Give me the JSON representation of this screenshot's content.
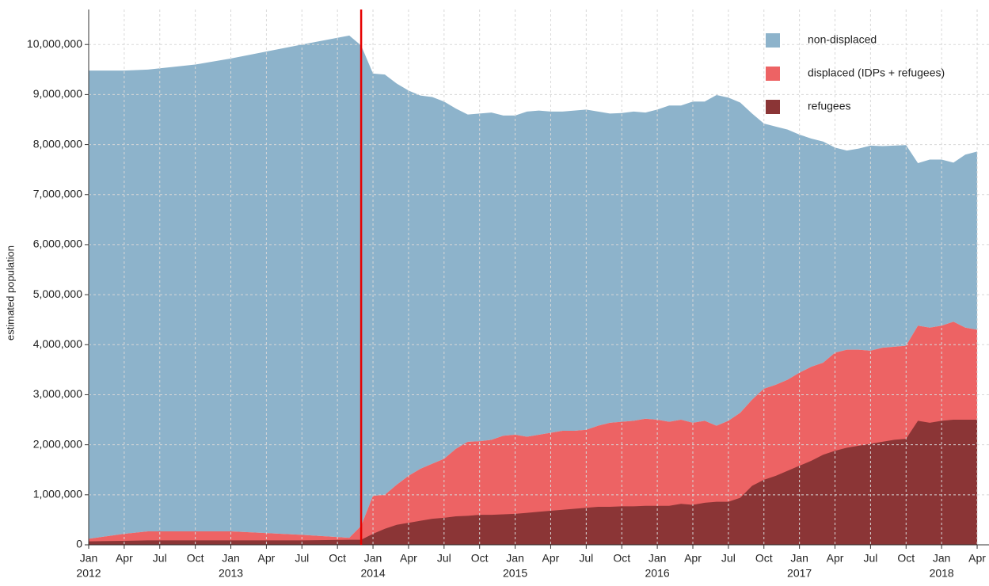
{
  "chart_data": {
    "type": "area",
    "y_label": "estimated population",
    "x": [
      "2012-01",
      "2012-04",
      "2012-06",
      "2012-10",
      "2013-01",
      "2013-07",
      "2013-11",
      "2013-12",
      "2014-01",
      "2014-02",
      "2014-03",
      "2014-04",
      "2014-05",
      "2014-06",
      "2014-07",
      "2014-08",
      "2014-09",
      "2014-10",
      "2014-11",
      "2014-12",
      "2015-01",
      "2015-02",
      "2015-03",
      "2015-04",
      "2015-05",
      "2015-06",
      "2015-07",
      "2015-08",
      "2015-09",
      "2015-10",
      "2015-11",
      "2015-12",
      "2016-01",
      "2016-02",
      "2016-03",
      "2016-04",
      "2016-05",
      "2016-06",
      "2016-07",
      "2016-08",
      "2016-09",
      "2016-10",
      "2016-11",
      "2016-12",
      "2017-01",
      "2017-02",
      "2017-03",
      "2017-04",
      "2017-05",
      "2017-06",
      "2017-07",
      "2017-08",
      "2017-09",
      "2017-10",
      "2017-11",
      "2017-12",
      "2018-01",
      "2018-02",
      "2018-03",
      "2018-04"
    ],
    "series": [
      {
        "name": "non-displaced",
        "color": "#8db3cb",
        "values": [
          9360000,
          9260000,
          9230000,
          9330000,
          9450000,
          9800000,
          10040000,
          9600000,
          8440000,
          8400000,
          8020000,
          7700000,
          7460000,
          7330000,
          7140000,
          6800000,
          6540000,
          6550000,
          6540000,
          6400000,
          6380000,
          6500000,
          6480000,
          6420000,
          6380000,
          6400000,
          6400000,
          6280000,
          6180000,
          6170000,
          6180000,
          6120000,
          6200000,
          6320000,
          6280000,
          6420000,
          6380000,
          6610000,
          6460000,
          6200000,
          5720000,
          5300000,
          5160000,
          5000000,
          4760000,
          4560000,
          4420000,
          4100000,
          3980000,
          4020000,
          4100000,
          4030000,
          4020000,
          4010000,
          3250000,
          3360000,
          3320000,
          3180000,
          3460000,
          3560000
        ]
      },
      {
        "name": "displaced (IDPs + refugees)",
        "color": "#ed6364",
        "values": [
          120000,
          220000,
          270000,
          270000,
          270000,
          200000,
          140000,
          380000,
          980000,
          1000000,
          1200000,
          1380000,
          1520000,
          1620000,
          1720000,
          1920000,
          2060000,
          2070000,
          2100000,
          2180000,
          2200000,
          2160000,
          2200000,
          2240000,
          2280000,
          2280000,
          2300000,
          2380000,
          2440000,
          2460000,
          2480000,
          2520000,
          2500000,
          2460000,
          2500000,
          2440000,
          2480000,
          2380000,
          2480000,
          2640000,
          2900000,
          3120000,
          3200000,
          3300000,
          3440000,
          3560000,
          3640000,
          3840000,
          3900000,
          3900000,
          3880000,
          3940000,
          3960000,
          3980000,
          4380000,
          4340000,
          4380000,
          4460000,
          4340000,
          4300000
        ]
      },
      {
        "name": "refugees",
        "color": "#8b3536",
        "values": [
          70000,
          80000,
          90000,
          90000,
          90000,
          90000,
          100000,
          100000,
          220000,
          320000,
          400000,
          440000,
          480000,
          520000,
          540000,
          570000,
          580000,
          600000,
          600000,
          610000,
          620000,
          640000,
          660000,
          680000,
          700000,
          720000,
          740000,
          760000,
          760000,
          770000,
          770000,
          780000,
          780000,
          780000,
          820000,
          800000,
          840000,
          860000,
          860000,
          940000,
          1180000,
          1300000,
          1380000,
          1480000,
          1580000,
          1680000,
          1800000,
          1880000,
          1940000,
          1980000,
          2020000,
          2060000,
          2100000,
          2120000,
          2480000,
          2440000,
          2480000,
          2500000,
          2500000,
          2500000
        ]
      }
    ],
    "xlim": [
      "2012-01",
      "2018-05"
    ],
    "xticks": [
      {
        "value": "2012-01",
        "label": "Jan"
      },
      {
        "value": "2012-04",
        "label": "Apr"
      },
      {
        "value": "2012-07",
        "label": "Jul"
      },
      {
        "value": "2012-10",
        "label": "Oct"
      },
      {
        "value": "2013-01",
        "label": "Jan"
      },
      {
        "value": "2013-04",
        "label": "Apr"
      },
      {
        "value": "2013-07",
        "label": "Jul"
      },
      {
        "value": "2013-10",
        "label": "Oct"
      },
      {
        "value": "2014-01",
        "label": "Jan"
      },
      {
        "value": "2014-04",
        "label": "Apr"
      },
      {
        "value": "2014-07",
        "label": "Jul"
      },
      {
        "value": "2014-10",
        "label": "Oct"
      },
      {
        "value": "2015-01",
        "label": "Jan"
      },
      {
        "value": "2015-04",
        "label": "Apr"
      },
      {
        "value": "2015-07",
        "label": "Jul"
      },
      {
        "value": "2015-10",
        "label": "Oct"
      },
      {
        "value": "2016-01",
        "label": "Jan"
      },
      {
        "value": "2016-04",
        "label": "Apr"
      },
      {
        "value": "2016-07",
        "label": "Jul"
      },
      {
        "value": "2016-10",
        "label": "Oct"
      },
      {
        "value": "2017-01",
        "label": "Jan"
      },
      {
        "value": "2017-04",
        "label": "Apr"
      },
      {
        "value": "2017-07",
        "label": "Jul"
      },
      {
        "value": "2017-10",
        "label": "Oct"
      },
      {
        "value": "2018-01",
        "label": "Jan"
      },
      {
        "value": "2018-04",
        "label": "Apr"
      }
    ],
    "year_labels": [
      {
        "value": "2012-01",
        "label": "2012"
      },
      {
        "value": "2013-01",
        "label": "2013"
      },
      {
        "value": "2014-01",
        "label": "2014"
      },
      {
        "value": "2015-01",
        "label": "2015"
      },
      {
        "value": "2016-01",
        "label": "2016"
      },
      {
        "value": "2017-01",
        "label": "2017"
      },
      {
        "value": "2018-01",
        "label": "2018"
      }
    ],
    "ylim": [
      0,
      10700000
    ],
    "yticks": [
      0,
      {
        "value": 1000000,
        "label": "1,000,000"
      },
      {
        "value": 2000000,
        "label": "2,000,000"
      },
      {
        "value": 3000000,
        "label": "3,000,000"
      },
      {
        "value": 4000000,
        "label": "4,000,000"
      },
      {
        "value": 5000000,
        "label": "5,000,000"
      },
      {
        "value": 6000000,
        "label": "6,000,000"
      },
      {
        "value": 7000000,
        "label": "7,000,000"
      },
      {
        "value": 8000000,
        "label": "8,000,000"
      },
      {
        "value": 9000000,
        "label": "9,000,000"
      },
      {
        "value": 10000000,
        "label": "10,000,000"
      }
    ],
    "grid": true,
    "legend": "upper right",
    "marker_line": {
      "x": "2013-12",
      "color": "#e60000"
    }
  }
}
